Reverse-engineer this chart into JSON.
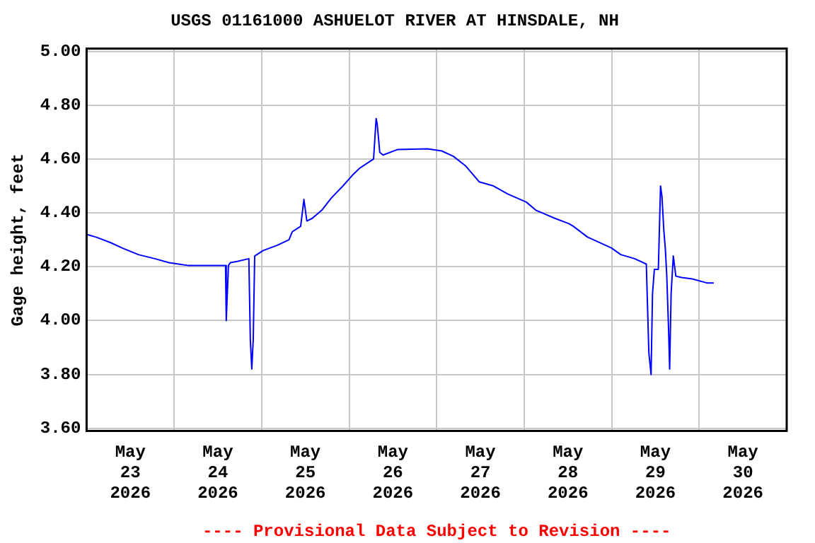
{
  "chart_data": {
    "type": "line",
    "title": "USGS 01161000 ASHUELOT RIVER AT HINSDALE, NH",
    "ylabel": "Gage height, feet",
    "annotations": [
      "---- Provisional Data Subject to Revision ----"
    ],
    "x": [
      "2026-05-23T00:00",
      "2026-05-23T02:36",
      "2026-05-23T06:30",
      "2026-05-23T09:42",
      "2026-05-23T14:12",
      "2026-05-23T18:42",
      "2026-05-23T22:36",
      "2026-05-24T03:42",
      "2026-05-24T11:30",
      "2026-05-24T14:06",
      "2026-05-24T14:18",
      "2026-05-24T14:54",
      "2026-05-24T15:24",
      "2026-05-24T17:18",
      "2026-05-24T20:30",
      "2026-05-24T20:54",
      "2026-05-24T21:18",
      "2026-05-24T21:42",
      "2026-05-24T22:06",
      "2026-05-25T00:24",
      "2026-05-25T04:18",
      "2026-05-25T07:30",
      "2026-05-25T08:24",
      "2026-05-25T10:42",
      "2026-05-25T11:36",
      "2026-05-25T12:00",
      "2026-05-25T12:24",
      "2026-05-25T13:54",
      "2026-05-25T16:30",
      "2026-05-25T19:06",
      "2026-05-25T22:18",
      "2026-05-26T00:54",
      "2026-05-26T02:48",
      "2026-05-26T06:42",
      "2026-05-26T07:24",
      "2026-05-26T07:42",
      "2026-05-26T08:24",
      "2026-05-26T09:18",
      "2026-05-26T13:12",
      "2026-05-26T21:30",
      "2026-05-27T01:24",
      "2026-05-27T04:36",
      "2026-05-27T07:54",
      "2026-05-27T11:42",
      "2026-05-27T15:36",
      "2026-05-27T19:30",
      "2026-05-28T00:36",
      "2026-05-28T03:12",
      "2026-05-28T08:24",
      "2026-05-28T12:18",
      "2026-05-28T13:30",
      "2026-05-28T17:24",
      "2026-05-28T23:54",
      "2026-05-29T02:30",
      "2026-05-29T06:18",
      "2026-05-29T09:30",
      "2026-05-29T10:12",
      "2026-05-29T10:48",
      "2026-05-29T11:12",
      "2026-05-29T11:42",
      "2026-05-29T12:48",
      "2026-05-29T13:24",
      "2026-05-29T13:48",
      "2026-05-29T14:18",
      "2026-05-29T14:42",
      "2026-05-29T15:06",
      "2026-05-29T15:36",
      "2026-05-29T15:54",
      "2026-05-29T16:18",
      "2026-05-29T16:54",
      "2026-05-29T17:36",
      "2026-05-29T19:12",
      "2026-05-29T22:06",
      "2026-05-30T02:06",
      "2026-05-30T04:00"
    ],
    "series": [
      {
        "color": "#0000ff",
        "values": [
          4.32,
          4.31,
          4.29,
          4.27,
          4.245,
          4.23,
          4.215,
          4.205,
          4.205,
          4.205,
          4.0,
          4.205,
          4.215,
          4.22,
          4.23,
          3.93,
          3.82,
          3.93,
          4.24,
          4.26,
          4.28,
          4.3,
          4.33,
          4.35,
          4.45,
          4.41,
          4.37,
          4.38,
          4.41,
          4.455,
          4.5,
          4.54,
          4.565,
          4.6,
          4.75,
          4.73,
          4.625,
          4.615,
          4.635,
          4.638,
          4.63,
          4.61,
          4.575,
          4.515,
          4.5,
          4.47,
          4.44,
          4.41,
          4.38,
          4.36,
          4.35,
          4.31,
          4.27,
          4.245,
          4.23,
          4.21,
          3.88,
          3.8,
          4.1,
          4.19,
          4.19,
          4.5,
          4.46,
          4.335,
          4.27,
          4.17,
          3.97,
          3.82,
          4.1,
          4.24,
          4.165,
          4.16,
          4.155,
          4.14,
          4.14
        ]
      }
    ],
    "xlim": [
      "2026-05-23T00:00",
      "2026-05-31T00:00"
    ],
    "xticks": [
      {
        "value": "2026-05-23T12:00",
        "label": "May\n23\n2026"
      },
      {
        "value": "2026-05-24T00:00",
        "label": null
      },
      {
        "value": "2026-05-24T12:00",
        "label": "May\n24\n2026"
      },
      {
        "value": "2026-05-25T00:00",
        "label": null
      },
      {
        "value": "2026-05-25T12:00",
        "label": "May\n25\n2026"
      },
      {
        "value": "2026-05-26T00:00",
        "label": null
      },
      {
        "value": "2026-05-26T12:00",
        "label": "May\n26\n2026"
      },
      {
        "value": "2026-05-27T00:00",
        "label": null
      },
      {
        "value": "2026-05-27T12:00",
        "label": "May\n27\n2026"
      },
      {
        "value": "2026-05-28T00:00",
        "label": null
      },
      {
        "value": "2026-05-28T12:00",
        "label": "May\n28\n2026"
      },
      {
        "value": "2026-05-29T00:00",
        "label": null
      },
      {
        "value": "2026-05-29T12:00",
        "label": "May\n29\n2026"
      },
      {
        "value": "2026-05-30T00:00",
        "label": null
      },
      {
        "value": "2026-05-30T12:00",
        "label": "May\n30\n2026"
      }
    ],
    "ylim": [
      3.59,
      5.01
    ],
    "yticks": [
      {
        "value": 3.6,
        "label": "3.60"
      },
      {
        "value": 3.8,
        "label": "3.80"
      },
      {
        "value": 4.0,
        "label": "4.00"
      },
      {
        "value": 4.2,
        "label": "4.20"
      },
      {
        "value": 4.4,
        "label": "4.40"
      },
      {
        "value": 4.6,
        "label": "4.60"
      },
      {
        "value": 4.8,
        "label": "4.80"
      },
      {
        "value": 5.0,
        "label": "5.00"
      }
    ],
    "grid": true,
    "legend": false,
    "marker": "none",
    "line_style": "solid"
  }
}
